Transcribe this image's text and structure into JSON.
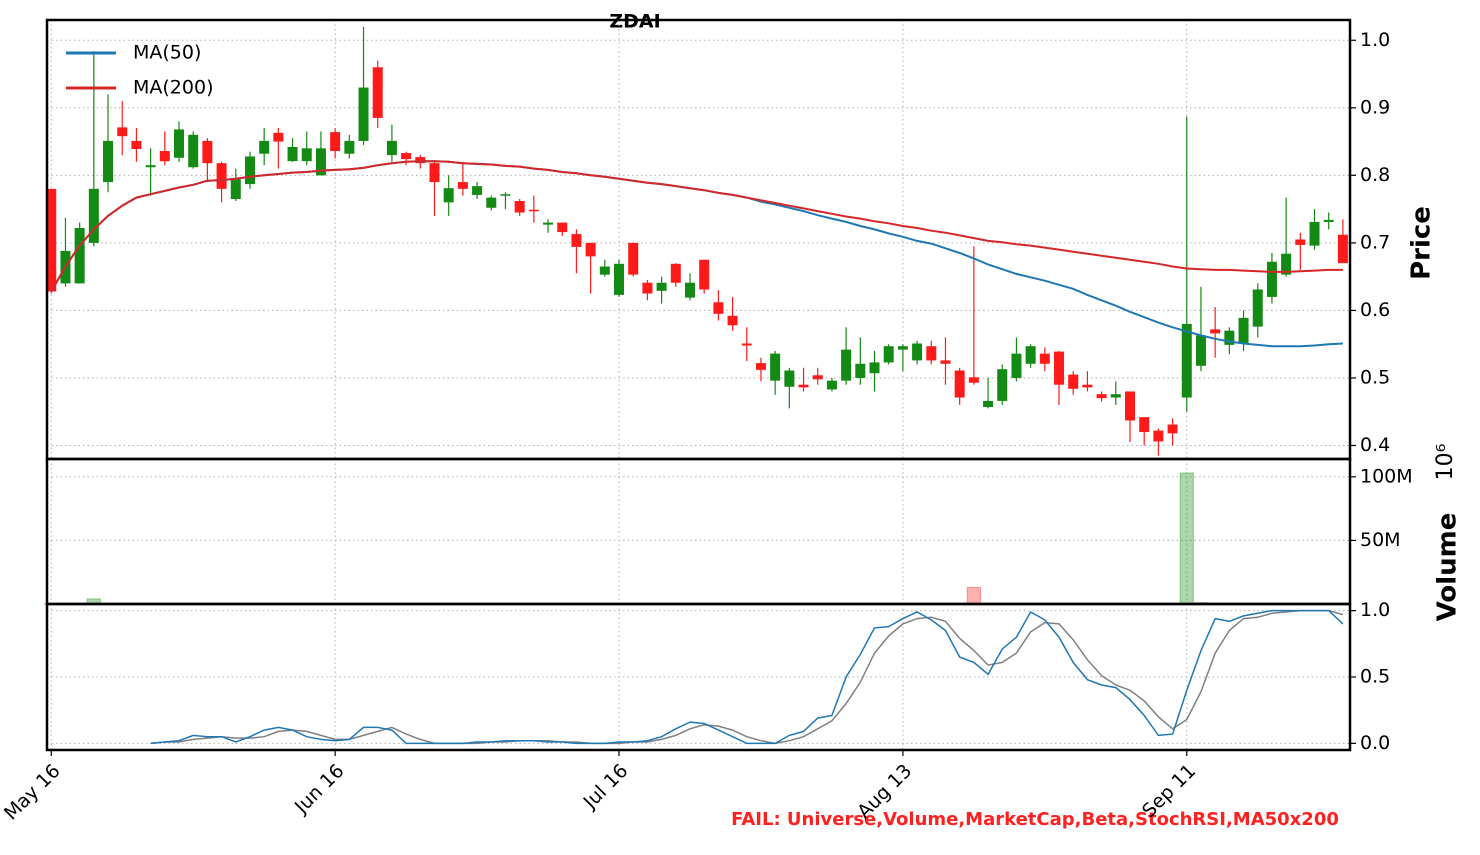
{
  "chart_data": [
    {
      "type": "candlestick",
      "title": "ZDAI",
      "ylabel": "Price",
      "annotation": "FAIL: Universe,Volume,MarketCap,Beta,StochRSI,MA50x200",
      "up_color": "#138a13",
      "down_color": "#ff1a1a",
      "grid": true,
      "legend": "upper left",
      "open": [
        0.78,
        0.64,
        0.64,
        0.7,
        0.79,
        0.871,
        0.851,
        0.812,
        0.836,
        0.826,
        0.812,
        0.851,
        0.818,
        0.765,
        0.787,
        0.832,
        0.863,
        0.821,
        0.821,
        0.8,
        0.864,
        0.832,
        0.851,
        0.96,
        0.83,
        0.833,
        0.827,
        0.818,
        0.76,
        0.79,
        0.771,
        0.752,
        0.771,
        0.762,
        0.749,
        0.727,
        0.73,
        0.713,
        0.7,
        0.653,
        0.623,
        0.7,
        0.641,
        0.629,
        0.669,
        0.619,
        0.675,
        0.612,
        0.592,
        0.551,
        0.522,
        0.496,
        0.487,
        0.49,
        0.504,
        0.483,
        0.496,
        0.5,
        0.507,
        0.523,
        0.542,
        0.526,
        0.547,
        0.526,
        0.511,
        0.501,
        0.457,
        0.466,
        0.5,
        0.521,
        0.536,
        0.539,
        0.505,
        0.49,
        0.476,
        0.471,
        0.48,
        0.442,
        0.422,
        0.431,
        0.471,
        0.518,
        0.572,
        0.549,
        0.551,
        0.576,
        0.62,
        0.653,
        0.705,
        0.696,
        0.731,
        0.712
      ],
      "high": [
        0.78,
        0.737,
        0.73,
        0.984,
        0.92,
        0.91,
        0.87,
        0.84,
        0.865,
        0.88,
        0.865,
        0.855,
        0.82,
        0.81,
        0.835,
        0.87,
        0.87,
        0.855,
        0.865,
        0.865,
        0.87,
        0.86,
        1.02,
        0.97,
        0.875,
        0.835,
        0.83,
        0.82,
        0.8,
        0.82,
        0.79,
        0.77,
        0.775,
        0.765,
        0.77,
        0.735,
        0.73,
        0.72,
        0.7,
        0.675,
        0.675,
        0.7,
        0.645,
        0.65,
        0.67,
        0.655,
        0.675,
        0.63,
        0.62,
        0.575,
        0.53,
        0.54,
        0.515,
        0.515,
        0.515,
        0.5,
        0.575,
        0.56,
        0.54,
        0.55,
        0.55,
        0.555,
        0.555,
        0.56,
        0.515,
        0.695,
        0.5,
        0.52,
        0.56,
        0.55,
        0.545,
        0.54,
        0.51,
        0.51,
        0.48,
        0.495,
        0.48,
        0.44,
        0.425,
        0.44,
        0.887,
        0.635,
        0.605,
        0.575,
        0.6,
        0.64,
        0.685,
        0.767,
        0.715,
        0.75,
        0.745,
        0.735
      ],
      "low": [
        0.625,
        0.635,
        0.64,
        0.695,
        0.775,
        0.83,
        0.82,
        0.77,
        0.815,
        0.82,
        0.81,
        0.79,
        0.76,
        0.762,
        0.78,
        0.815,
        0.81,
        0.82,
        0.815,
        0.8,
        0.825,
        0.825,
        0.845,
        0.87,
        0.82,
        0.815,
        0.81,
        0.74,
        0.74,
        0.77,
        0.765,
        0.748,
        0.75,
        0.74,
        0.73,
        0.715,
        0.71,
        0.655,
        0.625,
        0.65,
        0.62,
        0.65,
        0.615,
        0.61,
        0.635,
        0.615,
        0.625,
        0.585,
        0.57,
        0.525,
        0.495,
        0.475,
        0.455,
        0.48,
        0.49,
        0.48,
        0.49,
        0.49,
        0.48,
        0.52,
        0.51,
        0.52,
        0.52,
        0.49,
        0.46,
        0.49,
        0.455,
        0.46,
        0.495,
        0.515,
        0.51,
        0.46,
        0.475,
        0.48,
        0.465,
        0.46,
        0.405,
        0.4,
        0.385,
        0.4,
        0.45,
        0.51,
        0.53,
        0.535,
        0.54,
        0.56,
        0.61,
        0.65,
        0.66,
        0.69,
        0.72,
        0.67
      ],
      "close": [
        0.628,
        0.688,
        0.722,
        0.78,
        0.851,
        0.858,
        0.839,
        0.815,
        0.821,
        0.868,
        0.86,
        0.818,
        0.78,
        0.795,
        0.828,
        0.851,
        0.85,
        0.842,
        0.84,
        0.84,
        0.836,
        0.851,
        0.93,
        0.885,
        0.851,
        0.824,
        0.818,
        0.79,
        0.781,
        0.78,
        0.784,
        0.767,
        0.772,
        0.745,
        0.747,
        0.73,
        0.716,
        0.694,
        0.68,
        0.665,
        0.669,
        0.653,
        0.625,
        0.641,
        0.641,
        0.641,
        0.631,
        0.595,
        0.578,
        0.548,
        0.512,
        0.536,
        0.511,
        0.486,
        0.498,
        0.496,
        0.542,
        0.521,
        0.523,
        0.547,
        0.547,
        0.551,
        0.526,
        0.521,
        0.471,
        0.493,
        0.466,
        0.513,
        0.536,
        0.547,
        0.521,
        0.49,
        0.484,
        0.486,
        0.47,
        0.476,
        0.437,
        0.42,
        0.406,
        0.418,
        0.58,
        0.563,
        0.566,
        0.57,
        0.589,
        0.631,
        0.672,
        0.684,
        0.697,
        0.731,
        0.734,
        0.67
      ],
      "series": [
        {
          "name": "MA(50)",
          "color": "#1f77b4",
          "values": [
            0.628,
            0.665,
            0.696,
            0.72,
            0.74,
            0.755,
            0.767,
            0.772,
            0.777,
            0.782,
            0.786,
            0.792,
            0.793,
            0.795,
            0.798,
            0.8,
            0.802,
            0.804,
            0.805,
            0.807,
            0.808,
            0.809,
            0.811,
            0.815,
            0.818,
            0.82,
            0.821,
            0.821,
            0.82,
            0.818,
            0.817,
            0.816,
            0.814,
            0.813,
            0.81,
            0.808,
            0.805,
            0.803,
            0.8,
            0.798,
            0.795,
            0.792,
            0.789,
            0.787,
            0.784,
            0.781,
            0.778,
            0.774,
            0.771,
            0.767,
            0.761,
            0.757,
            0.752,
            0.747,
            0.741,
            0.736,
            0.731,
            0.725,
            0.72,
            0.714,
            0.709,
            0.703,
            0.699,
            0.692,
            0.685,
            0.677,
            0.668,
            0.661,
            0.654,
            0.649,
            0.644,
            0.638,
            0.632,
            0.623,
            0.615,
            0.607,
            0.598,
            0.59,
            0.582,
            0.575,
            0.569,
            0.563,
            0.558,
            0.554,
            0.551,
            0.549,
            0.547,
            0.547,
            0.547,
            0.548,
            0.55,
            0.551
          ]
        },
        {
          "name": "MA(200)",
          "color": "#d62728",
          "values": [
            0.628,
            0.665,
            0.696,
            0.72,
            0.74,
            0.755,
            0.767,
            0.772,
            0.777,
            0.782,
            0.786,
            0.792,
            0.793,
            0.795,
            0.798,
            0.8,
            0.802,
            0.804,
            0.805,
            0.807,
            0.808,
            0.809,
            0.811,
            0.815,
            0.818,
            0.82,
            0.821,
            0.821,
            0.82,
            0.818,
            0.817,
            0.816,
            0.814,
            0.813,
            0.81,
            0.808,
            0.805,
            0.803,
            0.8,
            0.798,
            0.795,
            0.792,
            0.789,
            0.787,
            0.784,
            0.781,
            0.778,
            0.774,
            0.771,
            0.767,
            0.763,
            0.759,
            0.755,
            0.751,
            0.747,
            0.743,
            0.739,
            0.736,
            0.732,
            0.729,
            0.725,
            0.722,
            0.718,
            0.715,
            0.711,
            0.707,
            0.703,
            0.701,
            0.698,
            0.696,
            0.693,
            0.69,
            0.687,
            0.684,
            0.681,
            0.678,
            0.675,
            0.672,
            0.669,
            0.665,
            0.662,
            0.661,
            0.66,
            0.66,
            0.659,
            0.658,
            0.657,
            0.657,
            0.658,
            0.659,
            0.66,
            0.66
          ]
        }
      ],
      "ylim": [
        0.38,
        1.03
      ],
      "yticks": [
        0.4,
        0.5,
        0.6,
        0.7,
        0.8,
        0.9,
        {
          "value": 1,
          "label": "1.0"
        }
      ],
      "xlim": [
        -0.3,
        91.5
      ],
      "xticks": [
        {
          "value": 0,
          "label": "May 16"
        },
        {
          "value": 20,
          "label": "Jun 16"
        },
        {
          "value": 40,
          "label": "Jul 16"
        },
        {
          "value": 60,
          "label": "Aug 13"
        },
        {
          "value": 80,
          "label": "Sep 11"
        }
      ]
    },
    {
      "type": "bar",
      "ylabel": "Volume",
      "offset_label": "10⁶",
      "up_color": "#138a13",
      "down_color": "#ff1a1a",
      "grid": true,
      "values": [
        0.3,
        0.3,
        0.3,
        4,
        0.3,
        0.3,
        0.3,
        0.3,
        0.3,
        0.3,
        0.3,
        0.3,
        0.3,
        0.3,
        0.3,
        0.3,
        0.3,
        0.3,
        0.3,
        0.3,
        0.3,
        0.3,
        0.3,
        0.3,
        0.3,
        0.3,
        0.3,
        0.3,
        0.3,
        0.3,
        0.3,
        0.3,
        0.3,
        0.3,
        0.3,
        0.3,
        0.3,
        0.3,
        0.3,
        0.3,
        0.3,
        0.3,
        0.3,
        0.3,
        0.3,
        0.3,
        0.3,
        0.3,
        0.3,
        0.3,
        0.3,
        0.3,
        0.3,
        0.3,
        0.3,
        0.3,
        0.3,
        0.3,
        0.3,
        0.3,
        0.3,
        0.3,
        0.3,
        0.3,
        0.3,
        13,
        0.3,
        0.3,
        0.3,
        0.3,
        0.3,
        0.3,
        0.3,
        0.3,
        0.3,
        0.3,
        0.3,
        0.3,
        0.3,
        0.3,
        103,
        1,
        0.3,
        0.3,
        0.3,
        0.3,
        0.3,
        0.3,
        0.3,
        0.3,
        0.3,
        0.3
      ],
      "ylim": [
        0,
        114
      ],
      "yticks": [
        {
          "value": 50,
          "label": "50M"
        },
        {
          "value": 100,
          "label": "100M"
        }
      ]
    },
    {
      "type": "line",
      "grid": true,
      "series": [
        {
          "color": "#808080",
          "values": [
            null,
            null,
            null,
            null,
            null,
            null,
            null,
            0,
            0.01,
            0.01,
            0.03,
            0.04,
            0.05,
            0.04,
            0.04,
            0.05,
            0.09,
            0.1,
            0.09,
            0.06,
            0.03,
            0.03,
            0.06,
            0.09,
            0.12,
            0.07,
            0.03,
            0,
            0,
            0,
            0,
            0.01,
            0.01,
            0.02,
            0.02,
            0.02,
            0.01,
            0.01,
            0,
            0,
            0,
            0.01,
            0.01,
            0.03,
            0.06,
            0.11,
            0.14,
            0.13,
            0.1,
            0.05,
            0.02,
            0,
            0.02,
            0.05,
            0.11,
            0.17,
            0.3,
            0.46,
            0.68,
            0.81,
            0.9,
            0.94,
            0.95,
            0.92,
            0.79,
            0.7,
            0.59,
            0.61,
            0.68,
            0.84,
            0.91,
            0.9,
            0.78,
            0.63,
            0.51,
            0.44,
            0.4,
            0.32,
            0.2,
            0.11,
            0.18,
            0.39,
            0.68,
            0.85,
            0.94,
            0.95,
            0.98,
            0.99,
            1.0,
            1.0,
            1.0,
            0.97
          ]
        },
        {
          "color": "#1f77b4",
          "values": [
            null,
            null,
            null,
            null,
            null,
            null,
            null,
            0,
            0.01,
            0.02,
            0.06,
            0.05,
            0.05,
            0.01,
            0.05,
            0.1,
            0.12,
            0.1,
            0.05,
            0.03,
            0.02,
            0.03,
            0.12,
            0.12,
            0.1,
            0,
            0,
            0,
            0,
            0,
            0.01,
            0.01,
            0.02,
            0.02,
            0.02,
            0.01,
            0.01,
            0,
            0,
            0,
            0.01,
            0.01,
            0.02,
            0.05,
            0.11,
            0.16,
            0.15,
            0.1,
            0.05,
            0,
            0,
            0,
            0.06,
            0.09,
            0.19,
            0.21,
            0.5,
            0.67,
            0.87,
            0.88,
            0.94,
            0.99,
            0.93,
            0.85,
            0.65,
            0.61,
            0.52,
            0.71,
            0.8,
            0.99,
            0.93,
            0.8,
            0.61,
            0.48,
            0.44,
            0.42,
            0.33,
            0.21,
            0.06,
            0.07,
            0.4,
            0.7,
            0.94,
            0.92,
            0.96,
            0.98,
            1.0,
            1.0,
            1.0,
            1.0,
            1.0,
            0.9
          ]
        }
      ],
      "ylim": [
        -0.05,
        1.05
      ],
      "yticks": [
        {
          "value": 0,
          "label": "0.0"
        },
        0.5,
        {
          "value": 1,
          "label": "1.0"
        }
      ]
    }
  ]
}
